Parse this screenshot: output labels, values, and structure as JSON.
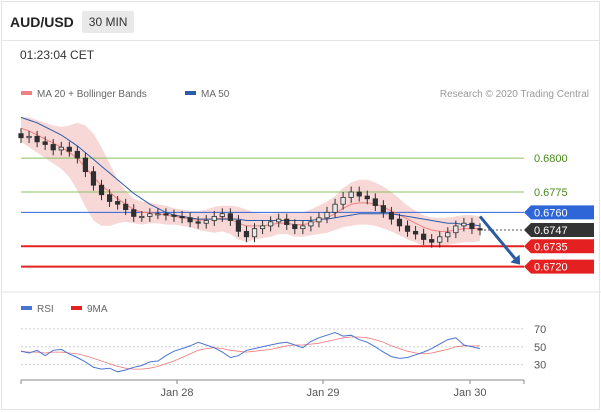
{
  "header": {
    "symbol": "AUD/USD",
    "timeframe": "30 MIN",
    "time": "01:23:04 CET"
  },
  "legend": [
    {
      "label": "MA 20 + Bollinger Bands",
      "color": "#f08080"
    },
    {
      "label": "MA 50",
      "color": "#2a5caa"
    }
  ],
  "credit": "Research © 2020 Trading Central",
  "rsi_legend": [
    {
      "label": "RSI",
      "color": "#4a74d4"
    },
    {
      "label": "9MA",
      "color": "#e52020"
    }
  ],
  "colors": {
    "support": "#e52020",
    "resistance": "#8cc060",
    "pivot": "#2e66d8",
    "price": "#333333",
    "arrow": "#2a5aa0"
  },
  "chart_data": [
    {
      "type": "line",
      "y_range": [
        0.6705,
        0.6845
      ],
      "levels": [
        {
          "value": 0.68,
          "label": "0.6800",
          "kind": "resistance"
        },
        {
          "value": 0.6775,
          "label": "0.6775",
          "kind": "resistance"
        },
        {
          "value": 0.676,
          "label": "0.6760",
          "kind": "pivot"
        },
        {
          "value": 0.6747,
          "label": "0.6747",
          "kind": "price"
        },
        {
          "value": 0.6735,
          "label": "0.6735",
          "kind": "support"
        },
        {
          "value": 0.672,
          "label": "0.6720",
          "kind": "support"
        }
      ],
      "price": [
        0.6815,
        0.6816,
        0.6812,
        0.681,
        0.6806,
        0.6808,
        0.6805,
        0.68,
        0.679,
        0.678,
        0.6773,
        0.6768,
        0.6766,
        0.6762,
        0.6757,
        0.6757,
        0.6759,
        0.6759,
        0.6758,
        0.6757,
        0.6756,
        0.6753,
        0.6752,
        0.6754,
        0.6757,
        0.6759,
        0.6754,
        0.6746,
        0.6742,
        0.6748,
        0.675,
        0.6753,
        0.6755,
        0.6751,
        0.6748,
        0.675,
        0.6753,
        0.6756,
        0.676,
        0.6766,
        0.6771,
        0.6775,
        0.6772,
        0.677,
        0.6765,
        0.676,
        0.6755,
        0.675,
        0.6746,
        0.6744,
        0.674,
        0.6738,
        0.6742,
        0.6745,
        0.675,
        0.6752,
        0.6748,
        0.6747
      ],
      "ma20": [
        0.6822,
        0.682,
        0.6817,
        0.6814,
        0.6811,
        0.6808,
        0.6804,
        0.68,
        0.6793,
        0.6786,
        0.678,
        0.6775,
        0.677,
        0.6766,
        0.6762,
        0.676,
        0.676,
        0.6759,
        0.6758,
        0.6757,
        0.6756,
        0.6755,
        0.6754,
        0.6755,
        0.6755,
        0.6756,
        0.6755,
        0.6752,
        0.675,
        0.675,
        0.675,
        0.6751,
        0.6752,
        0.6752,
        0.6751,
        0.6751,
        0.6752,
        0.6754,
        0.6756,
        0.6759,
        0.6763,
        0.6766,
        0.6767,
        0.6767,
        0.6766,
        0.6764,
        0.6761,
        0.6758,
        0.6755,
        0.6752,
        0.6749,
        0.6747,
        0.6746,
        0.6746,
        0.6747,
        0.6748,
        0.6748,
        0.6748
      ],
      "bb_upper": [
        0.683,
        0.683,
        0.6828,
        0.6826,
        0.6824,
        0.6823,
        0.6824,
        0.6826,
        0.6824,
        0.6818,
        0.6808,
        0.6796,
        0.6784,
        0.6776,
        0.677,
        0.6768,
        0.6767,
        0.6766,
        0.6765,
        0.6763,
        0.6762,
        0.6761,
        0.6761,
        0.6762,
        0.6764,
        0.6765,
        0.6765,
        0.6764,
        0.6762,
        0.676,
        0.6759,
        0.6759,
        0.676,
        0.676,
        0.676,
        0.676,
        0.6762,
        0.6765,
        0.6768,
        0.6772,
        0.6778,
        0.6782,
        0.6784,
        0.6784,
        0.6782,
        0.6779,
        0.6775,
        0.677,
        0.6765,
        0.6761,
        0.6758,
        0.6756,
        0.6756,
        0.6756,
        0.6757,
        0.6758,
        0.6758,
        0.6757
      ],
      "bb_lower": [
        0.6812,
        0.6808,
        0.6804,
        0.68,
        0.6796,
        0.6792,
        0.6786,
        0.6776,
        0.6764,
        0.6754,
        0.675,
        0.675,
        0.6752,
        0.6753,
        0.6752,
        0.6751,
        0.6752,
        0.6752,
        0.6751,
        0.6751,
        0.675,
        0.6749,
        0.6747,
        0.6746,
        0.6745,
        0.6746,
        0.6744,
        0.674,
        0.6738,
        0.674,
        0.6741,
        0.6742,
        0.6744,
        0.6744,
        0.6742,
        0.6742,
        0.6743,
        0.6744,
        0.6745,
        0.6747,
        0.6749,
        0.675,
        0.6751,
        0.6751,
        0.675,
        0.6748,
        0.6746,
        0.6743,
        0.674,
        0.6738,
        0.6735,
        0.6734,
        0.6735,
        0.6736,
        0.6737,
        0.6738,
        0.6738,
        0.6739
      ],
      "ma50": [
        0.683,
        0.6828,
        0.6826,
        0.6823,
        0.682,
        0.6817,
        0.6813,
        0.6809,
        0.6804,
        0.6799,
        0.6794,
        0.6789,
        0.6784,
        0.6779,
        0.6774,
        0.677,
        0.6766,
        0.6763,
        0.676,
        0.6758,
        0.6757,
        0.6756,
        0.6755,
        0.6755,
        0.6755,
        0.6755,
        0.6755,
        0.6755,
        0.6754,
        0.6754,
        0.6754,
        0.6754,
        0.6754,
        0.6754,
        0.6754,
        0.6754,
        0.6754,
        0.6755,
        0.6755,
        0.6756,
        0.6757,
        0.6758,
        0.6759,
        0.6759,
        0.6759,
        0.6759,
        0.6759,
        0.6758,
        0.6757,
        0.6756,
        0.6755,
        0.6754,
        0.6753,
        0.6752,
        0.6752,
        0.6751,
        0.6751,
        0.675
      ]
    },
    {
      "type": "line",
      "y_ticks": [
        70,
        50,
        30
      ],
      "y_range": [
        15,
        80
      ],
      "rsi": [
        45,
        43,
        46,
        40,
        46,
        47,
        42,
        38,
        33,
        27,
        25,
        26,
        22,
        24,
        27,
        29,
        33,
        34,
        40,
        45,
        48,
        51,
        55,
        52,
        49,
        44,
        38,
        40,
        46,
        48,
        50,
        52,
        54,
        55,
        52,
        49,
        56,
        60,
        63,
        66,
        62,
        63,
        58,
        55,
        50,
        44,
        39,
        37,
        38,
        41,
        44,
        48,
        53,
        58,
        60,
        52,
        50,
        48
      ],
      "rsi_ma9": [
        45,
        44,
        44,
        43,
        44,
        44,
        43,
        42,
        40,
        37,
        34,
        31,
        28,
        26,
        25,
        25,
        26,
        28,
        31,
        34,
        38,
        42,
        46,
        48,
        49,
        48,
        46,
        45,
        44,
        45,
        46,
        47,
        49,
        51,
        52,
        52,
        53,
        54,
        56,
        58,
        60,
        61,
        61,
        60,
        58,
        55,
        51,
        48,
        45,
        43,
        42,
        43,
        45,
        47,
        50,
        51,
        51,
        51
      ]
    }
  ],
  "x_axis": {
    "labels": [
      "Jan 28",
      "Jan 29",
      "Jan 30"
    ]
  }
}
